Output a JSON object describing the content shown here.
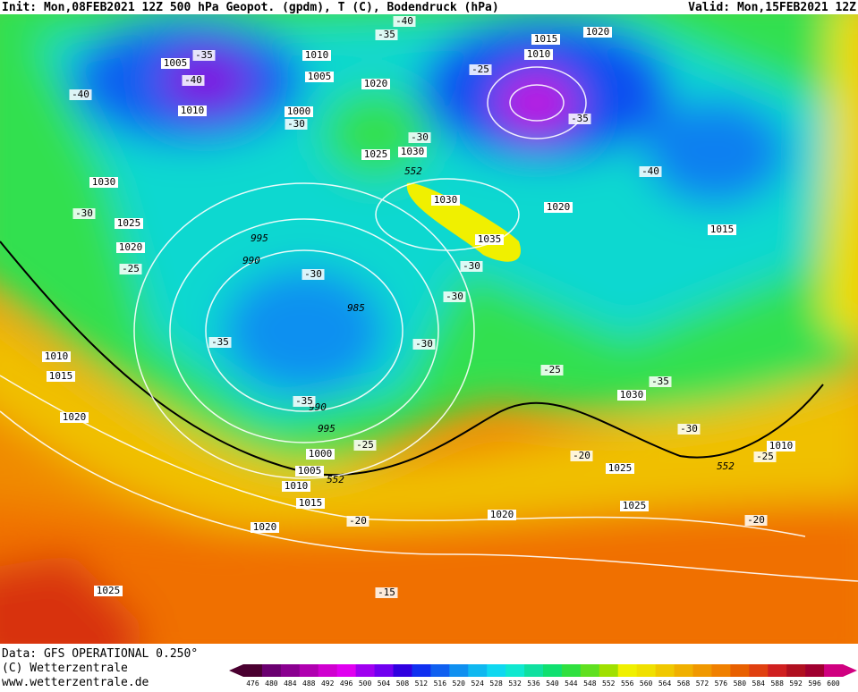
{
  "header": {
    "init": "Init: Mon,08FEB2021 12Z 500 hPa Geopot. (gpdm), T (C), Bodendruck (hPa)",
    "valid": "Valid: Mon,15FEB2021 12Z"
  },
  "map": {
    "labels": [
      "1005",
      "1010",
      "1005",
      "1020",
      "1010",
      "1000",
      "1025",
      "1030",
      "1030",
      "1025",
      "1020",
      "995",
      "990",
      "985",
      "1030",
      "1035",
      "1015",
      "1010",
      "1020",
      "1020",
      "1015",
      "1010",
      "1015",
      "1020",
      "990",
      "995",
      "1000",
      "1005",
      "1010",
      "1015",
      "1020",
      "1020",
      "1025",
      "1025",
      "1030",
      "1010",
      "1025",
      "-40",
      "-35",
      "-35",
      "-40",
      "-40",
      "-30",
      "-30",
      "-25",
      "-35",
      "-40",
      "-30",
      "-25",
      "-30",
      "-30",
      "-30",
      "-35",
      "-35",
      "-30",
      "-25",
      "-35",
      "-30",
      "-25",
      "-20",
      "-25",
      "-20",
      "-20",
      "-15",
      "552",
      "552",
      "552"
    ]
  },
  "footer": {
    "data": "Data: GFS OPERATIONAL 0.250°",
    "copyright": "(C) Wetterzentrale",
    "url": "www.wetterzentrale.de"
  },
  "colorbar": {
    "ticks": [
      476,
      480,
      484,
      488,
      492,
      496,
      500,
      504,
      508,
      512,
      516,
      520,
      524,
      528,
      532,
      536,
      540,
      544,
      548,
      552,
      556,
      560,
      564,
      568,
      572,
      576,
      580,
      584,
      588,
      592,
      596,
      600
    ],
    "colors": [
      "#4a0030",
      "#6a0070",
      "#8a0090",
      "#b000b0",
      "#d000d0",
      "#e000f0",
      "#a000f0",
      "#7000f0",
      "#3000e0",
      "#1030f0",
      "#1060f0",
      "#1090f0",
      "#10b8f0",
      "#10d8f0",
      "#10e8d0",
      "#10e0a0",
      "#10e070",
      "#30e040",
      "#60e020",
      "#a0e000",
      "#f0f000",
      "#f0e000",
      "#f0c800",
      "#f0b000",
      "#f09800",
      "#f08000",
      "#e86000",
      "#e04010",
      "#d02020",
      "#b01020",
      "#a00030",
      "#d00080"
    ]
  }
}
